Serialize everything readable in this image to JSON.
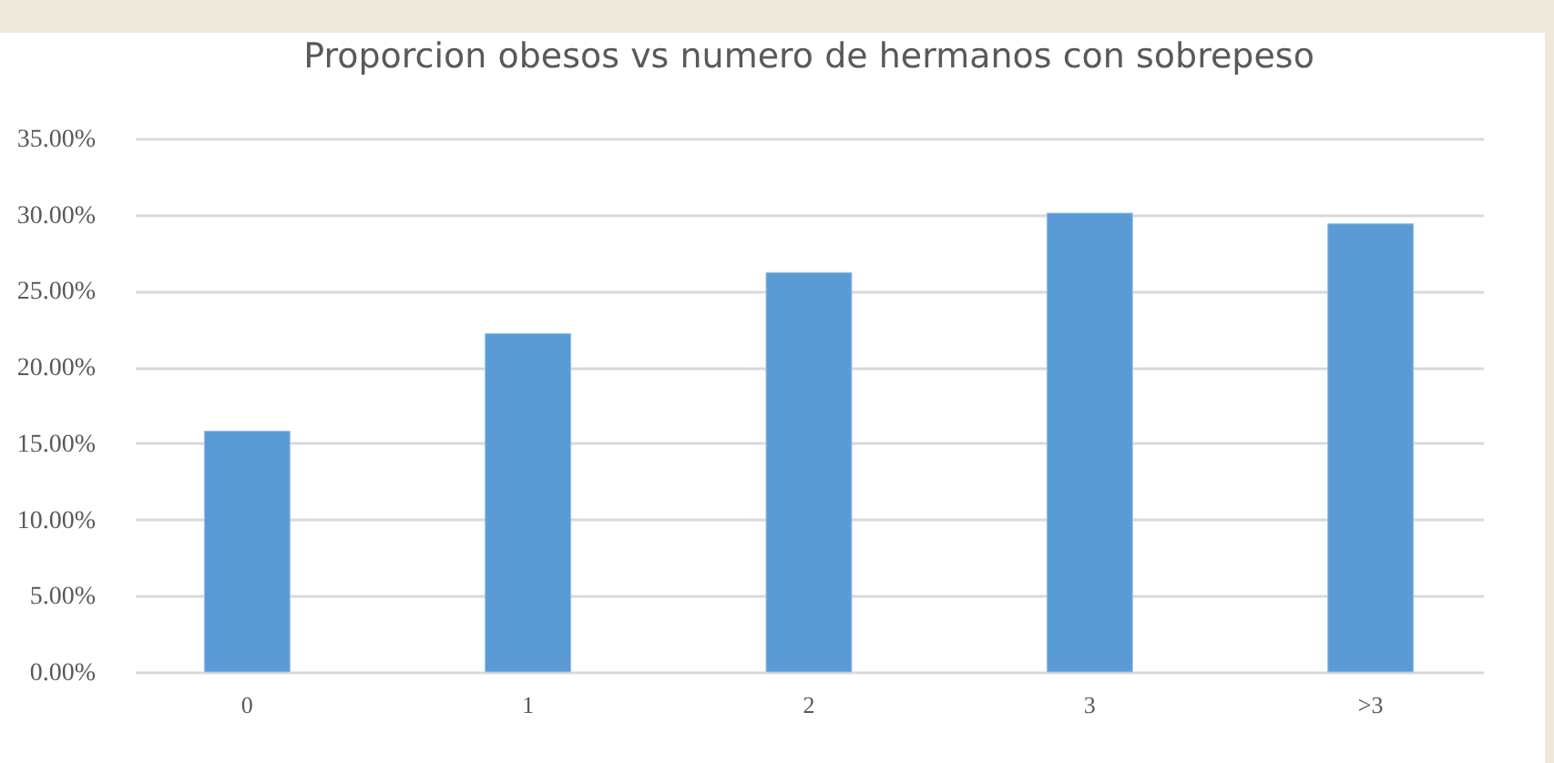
{
  "chart_data": {
    "type": "bar",
    "title": "Proporcion obesos vs numero de hermanos con sobrepeso",
    "categories": [
      "0",
      "1",
      "2",
      "3",
      ">3"
    ],
    "values": [
      15.8,
      22.2,
      26.2,
      30.1,
      29.4
    ],
    "color": "#5b9bd5",
    "ylim": [
      0,
      35
    ],
    "yticks": [
      {
        "value": 0,
        "label": "0.00%"
      },
      {
        "value": 5,
        "label": "5.00%"
      },
      {
        "value": 10,
        "label": "10.00%"
      },
      {
        "value": 15,
        "label": "15.00%"
      },
      {
        "value": 20,
        "label": "20.00%"
      },
      {
        "value": 25,
        "label": "25.00%"
      },
      {
        "value": 30,
        "label": "30.00%"
      },
      {
        "value": 35,
        "label": "35.00%"
      }
    ],
    "grid": "y"
  }
}
